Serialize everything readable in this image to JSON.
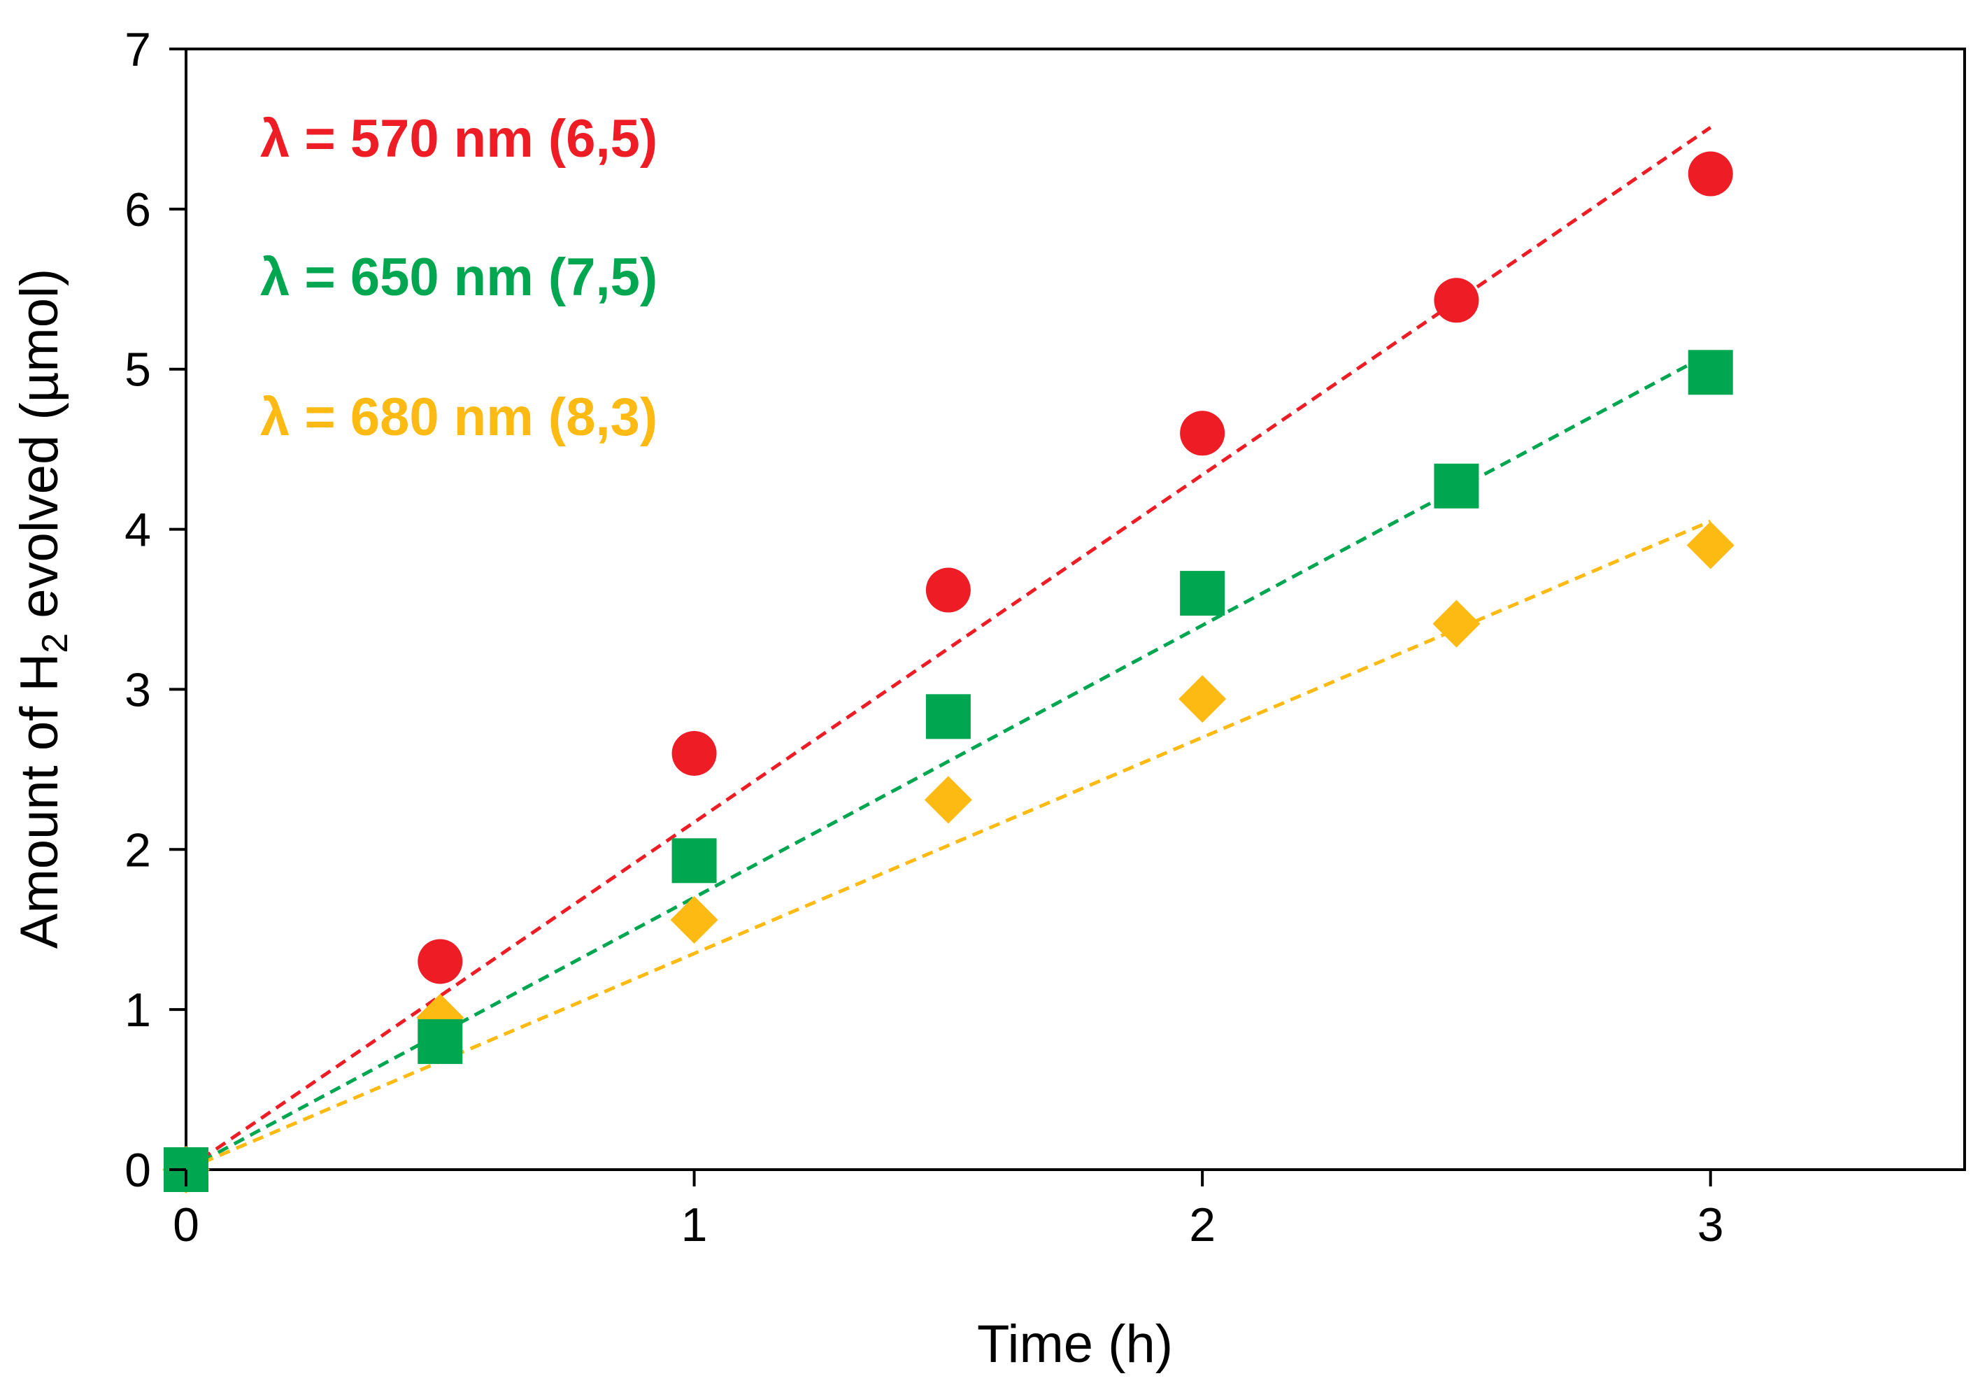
{
  "chart_data": {
    "type": "scatter",
    "title": "",
    "xlabel": "Time (h)",
    "ylabel_parts": [
      "Amount of H",
      "2",
      " evolved (µmol)"
    ],
    "xlim": [
      0,
      3.5
    ],
    "ylim": [
      0,
      7
    ],
    "xticks": [
      0,
      1,
      2,
      3
    ],
    "yticks": [
      0,
      1,
      2,
      3,
      4,
      5,
      6,
      7
    ],
    "legend_position": "top-left",
    "series": [
      {
        "name": "λ = 570 nm (6,5)",
        "color": "#ee1c25",
        "marker": "circle",
        "x": [
          0,
          0.5,
          1,
          1.5,
          2,
          2.5,
          3
        ],
        "y": [
          0,
          1.3,
          2.6,
          3.62,
          4.6,
          5.43,
          6.22
        ],
        "fit_slope": 2.17
      },
      {
        "name": "λ = 650 nm (7,5)",
        "color": "#00a650",
        "marker": "square",
        "x": [
          0,
          0.5,
          1,
          1.5,
          2,
          2.5,
          3
        ],
        "y": [
          0,
          0.8,
          1.93,
          2.83,
          3.6,
          4.27,
          4.98
        ],
        "fit_slope": 1.7
      },
      {
        "name": "λ = 680 nm (8,3)",
        "color": "#fcba12",
        "marker": "diamond",
        "x": [
          0,
          0.5,
          1,
          1.5,
          2,
          2.5,
          3
        ],
        "y": [
          0,
          0.95,
          1.56,
          2.31,
          2.94,
          3.41,
          3.9
        ],
        "fit_slope": 1.35
      }
    ]
  }
}
